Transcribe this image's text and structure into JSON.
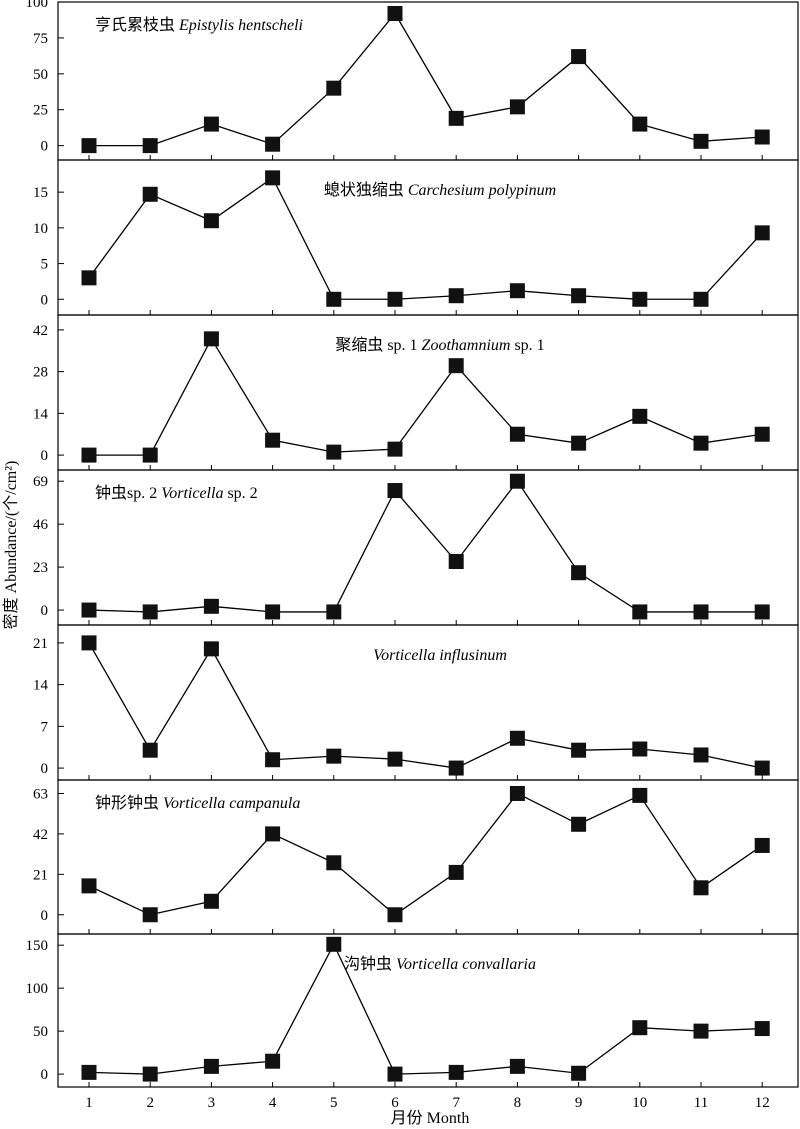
{
  "figure": {
    "ylabel": "密度 Abundance/(个/cm²)",
    "xlabel": "月份 Month"
  },
  "chart_data": [
    {
      "type": "line",
      "title_cn": "亨氏累枝虫",
      "title_latin": "Epistylis hentscheli",
      "x": [
        1,
        2,
        3,
        4,
        5,
        6,
        7,
        8,
        9,
        10,
        11,
        12
      ],
      "y": [
        0,
        0,
        15,
        1,
        40,
        92,
        19,
        27,
        62,
        15,
        3,
        6
      ],
      "ylim": [
        -10,
        100
      ],
      "yticks": [
        0,
        25,
        50,
        75,
        100
      ],
      "title_pos": "top-left"
    },
    {
      "type": "line",
      "title_cn": "螅状独缩虫",
      "title_latin": "Carchesium polypinum",
      "x": [
        1,
        2,
        3,
        4,
        5,
        6,
        7,
        8,
        9,
        10,
        11,
        12
      ],
      "y": [
        3,
        14.7,
        11,
        17,
        0,
        0,
        0.5,
        1.2,
        0.5,
        0,
        0,
        9.3
      ],
      "ylim": [
        -2.2,
        19.5
      ],
      "yticks": [
        0,
        5,
        10,
        15
      ],
      "title_pos": "center"
    },
    {
      "type": "line",
      "title_cn": "聚缩虫 sp. 1",
      "title_latin": "Zoothamnium",
      "title_suffix": "sp. 1",
      "x": [
        1,
        2,
        3,
        4,
        5,
        6,
        7,
        8,
        9,
        10,
        11,
        12
      ],
      "y": [
        0,
        0,
        39,
        5,
        1,
        2,
        30,
        7,
        4,
        13,
        4,
        7
      ],
      "ylim": [
        -5,
        47
      ],
      "yticks": [
        0,
        14,
        28,
        42
      ],
      "title_pos": "center"
    },
    {
      "type": "line",
      "title_cn": "钟虫sp. 2",
      "title_latin": "Vorticella",
      "title_suffix": "sp. 2",
      "x": [
        1,
        2,
        3,
        4,
        5,
        6,
        7,
        8,
        9,
        10,
        11,
        12
      ],
      "y": [
        0,
        -1,
        2,
        -1,
        -1,
        64,
        26,
        69,
        20,
        -1,
        -1,
        -1
      ],
      "ylim": [
        -8,
        75
      ],
      "yticks": [
        0,
        23,
        46,
        69
      ],
      "title_pos": "top-left"
    },
    {
      "type": "line",
      "title_cn": "",
      "title_latin": "Vorticella influsinum",
      "x": [
        1,
        2,
        3,
        4,
        5,
        6,
        7,
        8,
        9,
        10,
        11,
        12
      ],
      "y": [
        21,
        3,
        20,
        1.4,
        2,
        1.5,
        0,
        5,
        3,
        3.2,
        2.2,
        0
      ],
      "ylim": [
        -2,
        24
      ],
      "yticks": [
        0,
        7,
        14,
        21
      ],
      "title_pos": "center"
    },
    {
      "type": "line",
      "title_cn": "钟形钟虫",
      "title_latin": "Vorticella campanula",
      "x": [
        1,
        2,
        3,
        4,
        5,
        6,
        7,
        8,
        9,
        10,
        11,
        12
      ],
      "y": [
        15,
        0,
        7,
        42,
        27,
        0,
        22,
        63,
        47,
        62,
        14,
        36
      ],
      "ylim": [
        -10,
        70
      ],
      "yticks": [
        0,
        21,
        42,
        63
      ],
      "title_pos": "top-left"
    },
    {
      "type": "line",
      "title_cn": "沟钟虫",
      "title_latin": "Vorticella convallaria",
      "x": [
        1,
        2,
        3,
        4,
        5,
        6,
        7,
        8,
        9,
        10,
        11,
        12
      ],
      "y": [
        2,
        0,
        9,
        15,
        151,
        0,
        2,
        9,
        1,
        54,
        50,
        53
      ],
      "ylim": [
        -15,
        163
      ],
      "yticks": [
        0,
        50,
        100,
        150
      ],
      "title_pos": "center"
    }
  ]
}
